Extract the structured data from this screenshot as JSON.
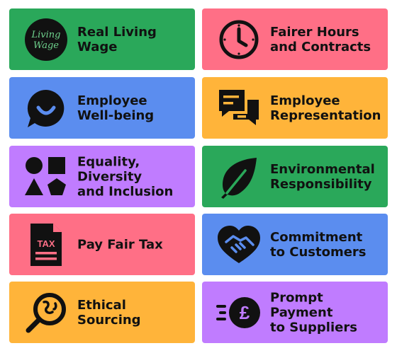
{
  "colors": {
    "green": "#2aa85a",
    "pink": "#ff6f86",
    "blue": "#5b8def",
    "yellow": "#ffb43a",
    "purple": "#c07cff",
    "icon": "#111111"
  },
  "cards": [
    {
      "id": "real-living-wage",
      "icon": "living-wage-logo",
      "logo_text": [
        "Living",
        "Wage"
      ],
      "lines": [
        "Real Living",
        "Wage"
      ]
    },
    {
      "id": "fairer-hours",
      "icon": "clock-icon",
      "lines": [
        "Fairer Hours",
        "and Contracts"
      ]
    },
    {
      "id": "employee-wellbeing",
      "icon": "smile-speech-bubble-icon",
      "lines": [
        "Employee",
        "Well-being"
      ]
    },
    {
      "id": "employee-representation",
      "icon": "chat-bubbles-icon",
      "lines": [
        "Employee",
        "Representation"
      ]
    },
    {
      "id": "equality-diversity",
      "icon": "shapes-icon",
      "lines": [
        "Equality,",
        "Diversity",
        "and Inclusion"
      ]
    },
    {
      "id": "environmental",
      "icon": "leaf-icon",
      "lines": [
        "Environmental",
        "Responsibility"
      ]
    },
    {
      "id": "pay-fair-tax",
      "icon": "tax-document-icon",
      "icon_text": "TAX",
      "lines": [
        "Pay Fair Tax"
      ]
    },
    {
      "id": "commitment-customers",
      "icon": "heart-handshake-icon",
      "lines": [
        "Commitment",
        "to Customers"
      ]
    },
    {
      "id": "ethical-sourcing",
      "icon": "magnifier-globe-icon",
      "lines": [
        "Ethical",
        "Sourcing"
      ]
    },
    {
      "id": "prompt-payment",
      "icon": "fast-pound-coin-icon",
      "icon_text": "£",
      "lines": [
        "Prompt",
        "Payment",
        "to Suppliers"
      ]
    }
  ]
}
